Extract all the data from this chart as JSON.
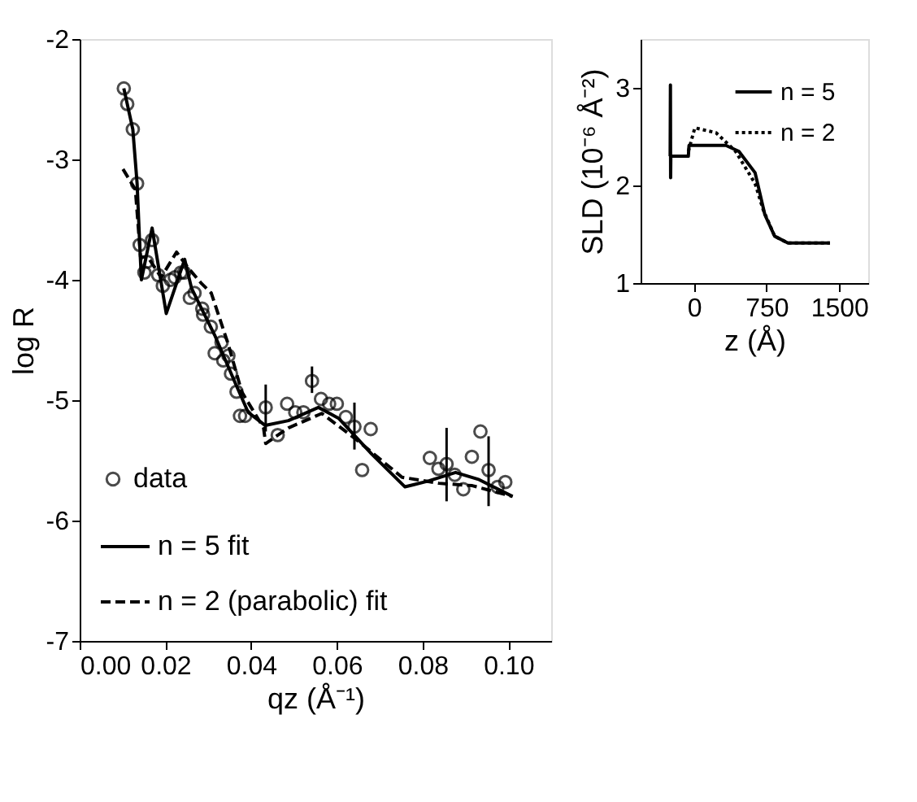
{
  "chart_data": [
    {
      "type": "scatter",
      "xlabel": "qz (Å⁻¹)",
      "ylabel": "log R",
      "xlim": [
        0,
        0.11
      ],
      "ylim": [
        -7,
        -2
      ],
      "xticks": [
        {
          "value": 0,
          "label": "0.00"
        },
        0.02,
        0.04,
        0.06,
        0.08,
        {
          "value": 0.1,
          "label": "0.10"
        }
      ],
      "yticks": [
        -7,
        -6,
        -5,
        -4,
        -3,
        -2
      ],
      "grid": false,
      "legend": "bottom left",
      "series": [
        {
          "name": "data",
          "marker": "circle",
          "color": "#000000",
          "x": [
            0.0103,
            0.0111,
            0.0124,
            0.0134,
            0.014,
            0.0151,
            0.0157,
            0.0169,
            0.0183,
            0.0194,
            0.0212,
            0.0222,
            0.0236,
            0.0244,
            0.0257,
            0.0268,
            0.0286,
            0.0288,
            0.0306,
            0.0315,
            0.0331,
            0.0335,
            0.0347,
            0.0353,
            0.0366,
            0.0374,
            0.0386,
            0.0434,
            0.0462,
            0.0484,
            0.0503,
            0.0522,
            0.0542,
            0.0563,
            0.0582,
            0.06,
            0.0621,
            0.0641,
            0.0659,
            0.0679,
            0.0817,
            0.0837,
            0.0856,
            0.0875,
            0.0895,
            0.0915,
            0.0935,
            0.0954,
            0.0975,
            0.0993
          ],
          "values": [
            -2.41,
            -2.54,
            -2.75,
            -3.2,
            -3.71,
            -3.94,
            -3.85,
            -3.67,
            -3.96,
            -4.05,
            -4.0,
            -3.98,
            -3.94,
            -3.94,
            -4.15,
            -4.11,
            -4.24,
            -4.29,
            -4.39,
            -4.61,
            -4.52,
            -4.67,
            -4.63,
            -4.78,
            -4.93,
            -5.13,
            -5.13,
            -5.06,
            -5.29,
            -5.03,
            -5.1,
            -5.1,
            -4.84,
            -4.99,
            -5.03,
            -5.03,
            -5.14,
            -5.22,
            -5.58,
            -5.24,
            -5.48,
            -5.57,
            -5.53,
            -5.62,
            -5.74,
            -5.47,
            -5.26,
            -5.58,
            -5.72,
            -5.68
          ],
          "errors": [
            null,
            null,
            null,
            null,
            null,
            null,
            null,
            null,
            null,
            null,
            null,
            null,
            null,
            null,
            null,
            null,
            null,
            null,
            null,
            null,
            null,
            null,
            null,
            null,
            null,
            null,
            null,
            [
              -5.26,
              -4.87
            ],
            null,
            null,
            null,
            null,
            [
              -4.94,
              -4.72
            ],
            null,
            null,
            null,
            null,
            [
              -5.41,
              -5.02
            ],
            null,
            null,
            null,
            null,
            [
              -5.84,
              -5.23
            ],
            null,
            null,
            null,
            null,
            [
              -5.88,
              -5.3
            ],
            null,
            null
          ]
        },
        {
          "name": "n = 5 fit",
          "type": "line",
          "line_style": "solid",
          "color": "#000000",
          "x": [
            0.0103,
            0.0124,
            0.0134,
            0.014,
            0.0144,
            0.0169,
            0.0202,
            0.0245,
            0.0261,
            0.0315,
            0.0362,
            0.0393,
            0.0433,
            0.0487,
            0.0557,
            0.0604,
            0.0682,
            0.0759,
            0.0815,
            0.0877,
            0.0932,
            0.101
          ],
          "values": [
            -2.41,
            -2.75,
            -3.2,
            -3.7,
            -4.0,
            -3.57,
            -4.28,
            -3.83,
            -4.07,
            -4.46,
            -4.85,
            -5.1,
            -5.21,
            -5.17,
            -5.06,
            -5.15,
            -5.45,
            -5.72,
            -5.67,
            -5.6,
            -5.66,
            -5.8
          ]
        },
        {
          "name": "n = 2 (parabolic) fit",
          "type": "line",
          "line_style": "dashed",
          "color": "#000000",
          "x": [
            0.0101,
            0.013,
            0.0142,
            0.0159,
            0.019,
            0.0226,
            0.0253,
            0.0284,
            0.0307,
            0.0347,
            0.0378,
            0.0429,
            0.0434,
            0.0487,
            0.0565,
            0.0643,
            0.0752,
            0.0838,
            0.0916,
            0.101
          ],
          "values": [
            -3.08,
            -3.25,
            -3.81,
            -3.81,
            -3.98,
            -3.77,
            -3.9,
            -4.03,
            -4.11,
            -4.54,
            -4.93,
            -5.23,
            -5.36,
            -5.23,
            -5.11,
            -5.32,
            -5.64,
            -5.69,
            -5.71,
            -5.8
          ]
        }
      ]
    },
    {
      "type": "line",
      "xlabel": "z (Å)",
      "ylabel": "SLD (10⁻⁶ Å⁻²)",
      "xlim": [
        -550,
        1800
      ],
      "ylim": [
        1,
        3.5
      ],
      "xticks": [
        0,
        750,
        1500
      ],
      "yticks": [
        1,
        2,
        3
      ],
      "grid": false,
      "legend": "top right",
      "series": [
        {
          "name": "n = 5",
          "line_style": "solid",
          "color": "#000000",
          "x": [
            -245,
            -242,
            -240,
            -238,
            -57,
            -50,
            330,
            464,
            632,
            733,
            834,
            971,
            1405
          ],
          "values": [
            2.3,
            3.03,
            2.08,
            2.3,
            2.3,
            2.41,
            2.41,
            2.35,
            2.13,
            1.7,
            1.48,
            1.41,
            1.41
          ]
        },
        {
          "name": "n = 2",
          "line_style": "dotted",
          "color": "#000000",
          "x": [
            -57,
            10,
            229,
            430,
            632,
            716,
            834,
            971,
            1405
          ],
          "values": [
            2.35,
            2.59,
            2.54,
            2.35,
            2.02,
            1.75,
            1.48,
            1.41,
            1.41
          ]
        }
      ]
    }
  ]
}
